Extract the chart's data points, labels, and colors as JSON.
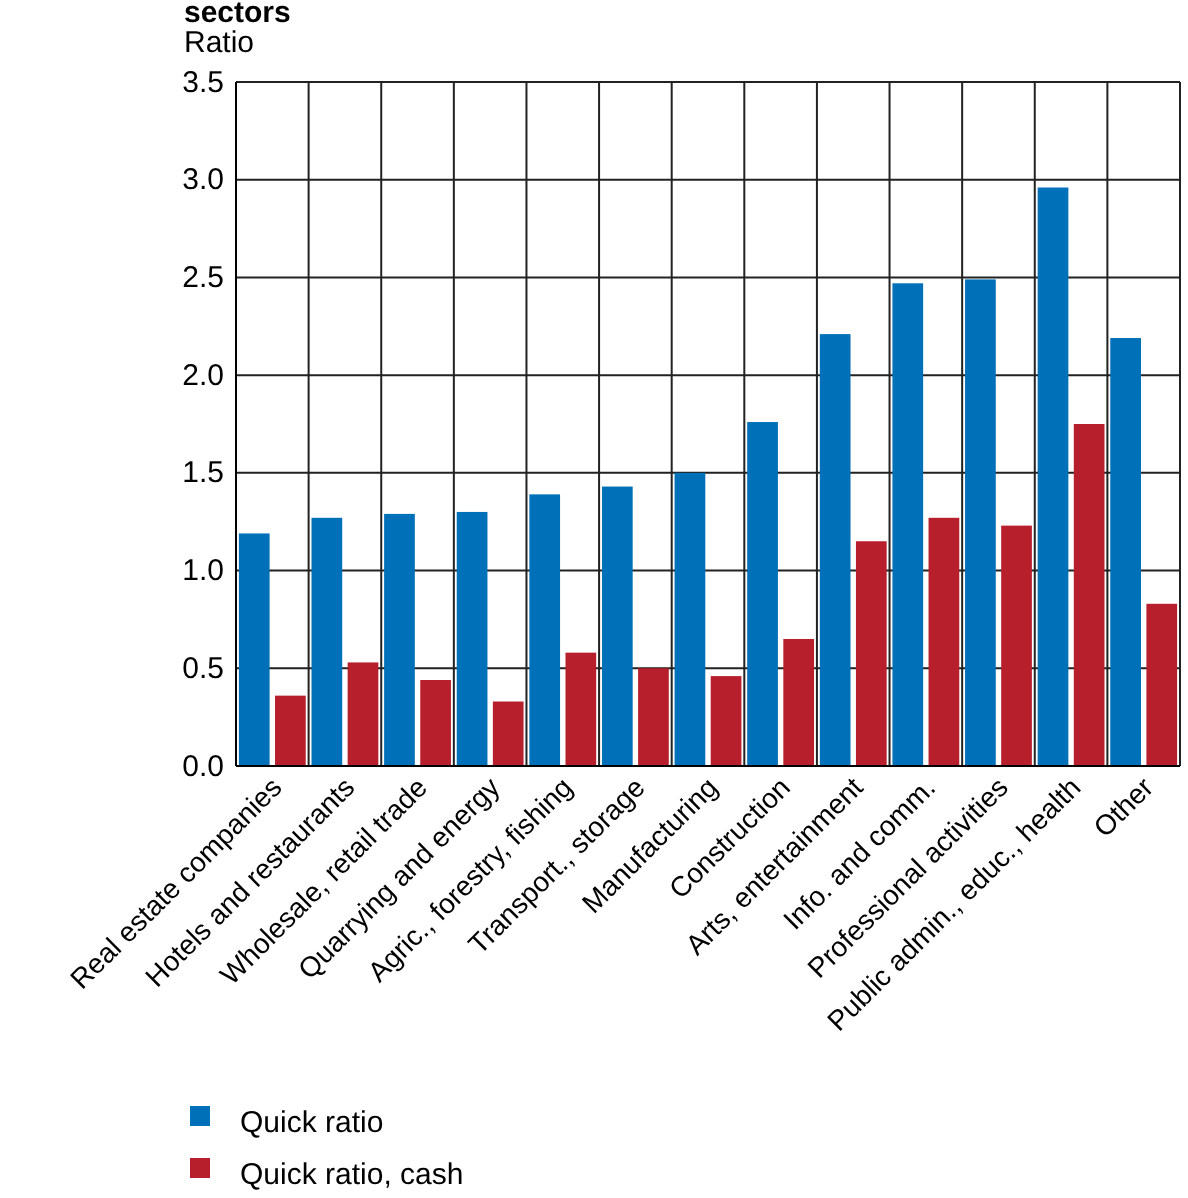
{
  "chart_data": {
    "type": "bar",
    "title": "sectors",
    "ylabel": "Ratio",
    "categories": [
      "Real estate companies",
      "Hotels and restaurants",
      "Wholesale, retail trade",
      "Quarrying and energy",
      "Agric., forestry, fishing",
      "Transport., storage",
      "Manufacturing",
      "Construction",
      "Arts, entertainment",
      "Info. and comm.",
      "Professional activities",
      "Public admin., educ., health",
      "Other"
    ],
    "series": [
      {
        "name": "Quick ratio",
        "color": "#0070b8",
        "values": [
          1.19,
          1.27,
          1.29,
          1.3,
          1.39,
          1.43,
          1.5,
          1.76,
          2.21,
          2.47,
          2.49,
          2.96,
          2.19
        ]
      },
      {
        "name": "Quick ratio, cash",
        "color": "#b81f2d",
        "values": [
          0.36,
          0.53,
          0.44,
          0.33,
          0.58,
          0.5,
          0.46,
          0.65,
          1.15,
          1.27,
          1.23,
          1.75,
          0.83
        ]
      }
    ],
    "ylim": [
      0,
      3.5
    ],
    "yticks": [
      {
        "value": 0,
        "label": "0.0"
      },
      {
        "value": 0.5,
        "label": "0.5"
      },
      {
        "value": 1,
        "label": "1.0"
      },
      {
        "value": 1.5,
        "label": "1.5"
      },
      {
        "value": 2,
        "label": "2.0"
      },
      {
        "value": 2.5,
        "label": "2.5"
      },
      {
        "value": 3,
        "label": "3.0"
      },
      {
        "value": 3.5,
        "label": "3.5"
      }
    ],
    "grid": true,
    "legend": "bottom left"
  }
}
